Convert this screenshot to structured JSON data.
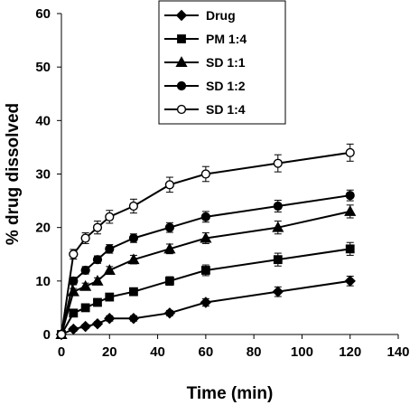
{
  "chart_data": {
    "type": "line",
    "title": "",
    "xlabel": "Time (min)",
    "ylabel": "% drug dissolved",
    "xlim": [
      0,
      140
    ],
    "ylim": [
      0,
      60
    ],
    "x_ticks": [
      0,
      20,
      40,
      60,
      80,
      100,
      120,
      140
    ],
    "y_ticks": [
      0,
      10,
      20,
      30,
      40,
      50,
      60
    ],
    "grid": false,
    "legend_position": "top-right",
    "error_bars": true,
    "series": [
      {
        "name": "Drug",
        "marker": "diamond",
        "filled": true,
        "color": "#000000",
        "x": [
          0,
          5,
          10,
          15,
          20,
          30,
          45,
          60,
          90,
          120
        ],
        "y": [
          0,
          1,
          1.5,
          2,
          3,
          3,
          4,
          6,
          8,
          10
        ],
        "error": [
          0.4,
          0.4,
          0.4,
          0.4,
          0.5,
          0.5,
          0.5,
          0.7,
          0.9,
          0.9
        ]
      },
      {
        "name": "PM 1:4",
        "marker": "square",
        "filled": true,
        "color": "#000000",
        "x": [
          0,
          5,
          10,
          15,
          20,
          30,
          45,
          60,
          90,
          120
        ],
        "y": [
          0,
          4,
          5,
          6,
          7,
          8,
          10,
          12,
          14,
          16
        ],
        "error": [
          0.4,
          0.5,
          0.5,
          0.6,
          0.6,
          0.7,
          0.8,
          1.0,
          1.2,
          1.2
        ]
      },
      {
        "name": "SD 1:1",
        "marker": "triangle",
        "filled": true,
        "color": "#000000",
        "x": [
          0,
          5,
          10,
          15,
          20,
          30,
          45,
          60,
          90,
          120
        ],
        "y": [
          0,
          8,
          9,
          10,
          12,
          14,
          16,
          18,
          20,
          23
        ],
        "error": [
          0.4,
          0.6,
          0.6,
          0.6,
          0.7,
          0.8,
          0.9,
          1.0,
          1.2,
          1.2
        ]
      },
      {
        "name": "SD 1:2",
        "marker": "circle",
        "filled": true,
        "color": "#000000",
        "x": [
          0,
          5,
          10,
          15,
          20,
          30,
          45,
          60,
          90,
          120
        ],
        "y": [
          0,
          10,
          12,
          14,
          16,
          18,
          20,
          22,
          24,
          26
        ],
        "error": [
          0.4,
          0.7,
          0.7,
          0.7,
          0.8,
          0.8,
          0.9,
          1.0,
          1.1,
          1.0
        ]
      },
      {
        "name": "SD 1:4",
        "marker": "circle",
        "filled": false,
        "color": "#000000",
        "x": [
          0,
          5,
          10,
          15,
          20,
          30,
          45,
          60,
          90,
          120
        ],
        "y": [
          0,
          15,
          18,
          20,
          22,
          24,
          28,
          30,
          32,
          34
        ],
        "error": [
          0.4,
          0.9,
          1.0,
          1.2,
          1.2,
          1.3,
          1.4,
          1.4,
          1.6,
          1.6
        ]
      }
    ]
  }
}
